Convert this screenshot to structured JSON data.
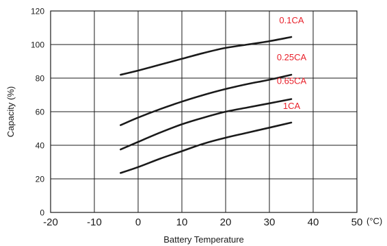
{
  "chart_data": {
    "type": "line",
    "xlabel": "Battery Temperature",
    "ylabel": "Capacity (%)",
    "x_unit": "(°C)",
    "xlim": [
      -20,
      50
    ],
    "ylim": [
      0,
      120
    ],
    "x_ticks": [
      -20,
      -10,
      0,
      10,
      20,
      30,
      40,
      50
    ],
    "y_ticks": [
      0,
      20,
      40,
      60,
      80,
      100,
      120
    ],
    "grid": true,
    "label_color": "#e8202a",
    "line_color": "#1a1a1a",
    "series": [
      {
        "name": "0.1CA",
        "points": [
          [
            -4,
            82
          ],
          [
            0,
            84.5
          ],
          [
            5,
            88
          ],
          [
            10,
            91.5
          ],
          [
            15,
            95
          ],
          [
            20,
            98
          ],
          [
            25,
            100
          ],
          [
            30,
            102
          ],
          [
            35,
            104.5
          ]
        ]
      },
      {
        "name": "0.25CA",
        "points": [
          [
            -4,
            52
          ],
          [
            0,
            56.5
          ],
          [
            5,
            61.5
          ],
          [
            10,
            66
          ],
          [
            15,
            70
          ],
          [
            20,
            73.5
          ],
          [
            25,
            76.5
          ],
          [
            30,
            79
          ],
          [
            35,
            82
          ]
        ]
      },
      {
        "name": "0.65CA",
        "points": [
          [
            -4,
            37.5
          ],
          [
            0,
            42
          ],
          [
            5,
            47.5
          ],
          [
            10,
            52.5
          ],
          [
            15,
            56.5
          ],
          [
            20,
            60
          ],
          [
            25,
            62.5
          ],
          [
            30,
            65
          ],
          [
            35,
            67.5
          ]
        ]
      },
      {
        "name": "1CA",
        "points": [
          [
            -4,
            23.5
          ],
          [
            0,
            27
          ],
          [
            5,
            32
          ],
          [
            10,
            36.5
          ],
          [
            15,
            41
          ],
          [
            20,
            44.5
          ],
          [
            25,
            47.5
          ],
          [
            30,
            50.5
          ],
          [
            35,
            53.5
          ]
        ]
      }
    ]
  }
}
